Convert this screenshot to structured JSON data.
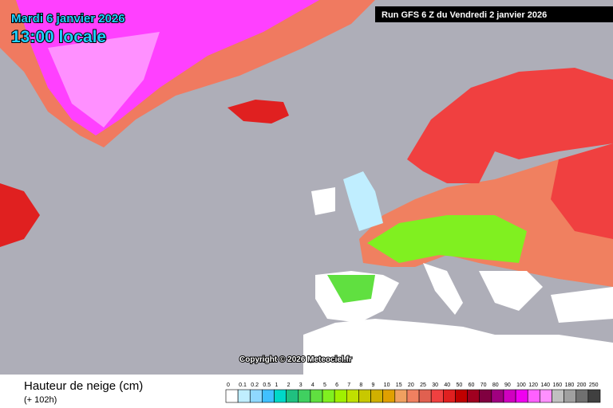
{
  "header": {
    "date": "Mardi 6 janvier 2026",
    "time": "13:00 locale",
    "run": "Run GFS 6 Z du Vendredi 2 janvier 2026"
  },
  "copyright": "Copyright © 2026 Meteociel.fr",
  "legend": {
    "title": "Hauteur de neige (cm)",
    "subtitle": "(+ 102h)",
    "items": [
      {
        "label": "0",
        "color": "#ffffff"
      },
      {
        "label": "0.1",
        "color": "#c0eeff"
      },
      {
        "label": "0.2",
        "color": "#8fd8ff"
      },
      {
        "label": "0.5",
        "color": "#40c0ff"
      },
      {
        "label": "1",
        "color": "#00d8c8"
      },
      {
        "label": "2",
        "color": "#20c080"
      },
      {
        "label": "3",
        "color": "#40d060"
      },
      {
        "label": "4",
        "color": "#60e040"
      },
      {
        "label": "5",
        "color": "#80f020"
      },
      {
        "label": "6",
        "color": "#a0f000"
      },
      {
        "label": "7",
        "color": "#c0e000"
      },
      {
        "label": "8",
        "color": "#c8c800"
      },
      {
        "label": "9",
        "color": "#d0b000"
      },
      {
        "label": "10",
        "color": "#e0a000"
      },
      {
        "label": "15",
        "color": "#f0a060"
      },
      {
        "label": "20",
        "color": "#f08060"
      },
      {
        "label": "25",
        "color": "#e06050"
      },
      {
        "label": "30",
        "color": "#f04040"
      },
      {
        "label": "40",
        "color": "#e02020"
      },
      {
        "label": "50",
        "color": "#c00000"
      },
      {
        "label": "60",
        "color": "#a00020"
      },
      {
        "label": "70",
        "color": "#800040"
      },
      {
        "label": "80",
        "color": "#a00080"
      },
      {
        "label": "90",
        "color": "#d000c0"
      },
      {
        "label": "100",
        "color": "#f000f0"
      },
      {
        "label": "120",
        "color": "#ff60ff"
      },
      {
        "label": "140",
        "color": "#ff90ff"
      },
      {
        "label": "160",
        "color": "#c0c0c0"
      },
      {
        "label": "180",
        "color": "#a0a0a0"
      },
      {
        "label": "200",
        "color": "#707070"
      },
      {
        "label": "250",
        "color": "#404040"
      }
    ]
  }
}
